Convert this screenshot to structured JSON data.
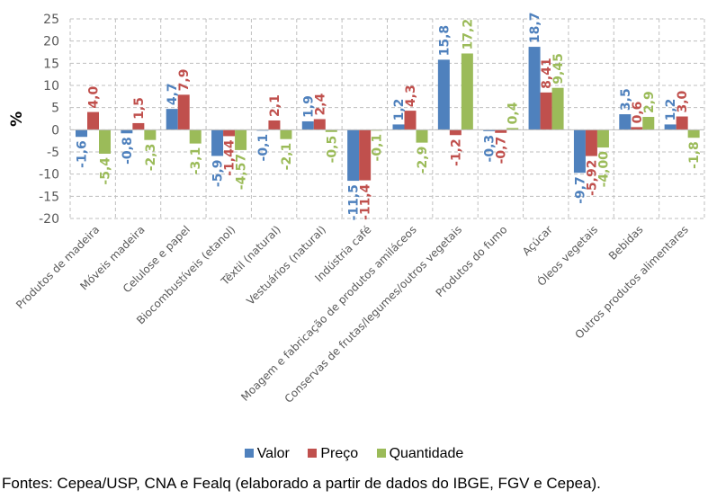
{
  "chart_data": {
    "type": "bar",
    "title": "",
    "xlabel": "",
    "ylabel": "%",
    "ylim": [
      -20,
      25
    ],
    "yticks": [
      25,
      20,
      15,
      10,
      5,
      0,
      -5,
      -10,
      -15,
      -20
    ],
    "grid": true,
    "legend_position": "bottom",
    "categories": [
      "Produtos de madeira",
      "Móveis madeira",
      "Celulose e papel",
      "Biocombustíveis (etanol)",
      "Têxtil (natural)",
      "Vestuários (natural)",
      "Indústria café",
      "Moagem e fabricação de produtos amiláceos",
      "Conservas de frutas/legumes/outros vegetais",
      "Produtos do fumo",
      "Açúcar",
      "Óleos vegetais",
      "Bebidas",
      "Outros produtos alimentares"
    ],
    "series": [
      {
        "name": "Valor",
        "color": "#4f81bd",
        "values": [
          -1.6,
          -0.8,
          4.7,
          -5.9,
          -0.1,
          1.9,
          -11.5,
          1.2,
          15.8,
          -0.3,
          18.7,
          -9.7,
          3.5,
          1.2
        ],
        "labels": [
          "-1,6",
          "-0,8",
          "4,7",
          "-5,9",
          "-0,1",
          "1,9",
          "-11,5",
          "1,2",
          "15,8",
          "-0,3",
          "18,7",
          "-9,7",
          "3,5",
          "1,2"
        ]
      },
      {
        "name": "Preço",
        "color": "#c0504d",
        "values": [
          4.0,
          1.5,
          7.9,
          -1.44,
          2.1,
          2.4,
          -11.4,
          4.3,
          -1.2,
          -0.7,
          8.41,
          -5.92,
          0.6,
          3.0
        ],
        "labels": [
          "4,0",
          "1,5",
          "7,9",
          "-1,44",
          "2,1",
          "2,4",
          "-11,4",
          "4,3",
          "-1,2",
          "-0,7",
          "8,41",
          "-5,92",
          "0,6",
          "3,0"
        ]
      },
      {
        "name": "Quantidade",
        "color": "#9bbb59",
        "values": [
          -5.4,
          -2.3,
          -3.1,
          -4.57,
          -2.1,
          -0.5,
          -0.1,
          -2.9,
          17.2,
          0.4,
          9.45,
          -4.0,
          2.9,
          -1.8
        ],
        "labels": [
          "-5,4",
          "-2,3",
          "-3,1",
          "-4,57",
          "-2,1",
          "-0,5",
          "-0,1",
          "-2,9",
          "17,2",
          "0,4",
          "9,45",
          "-4,00",
          "2,9",
          "-1,8"
        ]
      }
    ]
  },
  "legend": {
    "items": [
      {
        "label": "Valor",
        "color": "#4f81bd"
      },
      {
        "label": "Preço",
        "color": "#c0504d"
      },
      {
        "label": "Quantidade",
        "color": "#9bbb59"
      }
    ]
  },
  "source_note": "Fontes: Cepea/USP, CNA e Fealq (elaborado a partir de dados do IBGE, FGV e Cepea)."
}
